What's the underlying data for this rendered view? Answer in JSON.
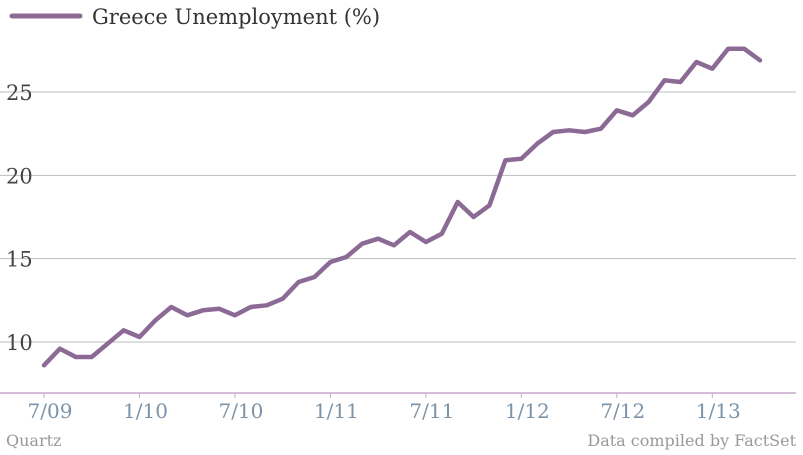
{
  "chart_data": {
    "type": "line",
    "series": [
      {
        "name": "Greece Unemployment (%)",
        "color": "#8c6a96",
        "values": [
          8.6,
          9.6,
          9.1,
          9.1,
          9.9,
          10.7,
          10.3,
          11.3,
          12.1,
          11.6,
          11.9,
          12.0,
          11.6,
          12.1,
          12.2,
          12.6,
          13.6,
          13.9,
          14.8,
          15.1,
          15.9,
          16.2,
          15.8,
          16.6,
          16.0,
          16.5,
          18.4,
          17.5,
          18.2,
          20.9,
          21.0,
          21.9,
          22.6,
          22.7,
          22.6,
          22.8,
          23.9,
          23.6,
          24.4,
          25.7,
          25.6,
          26.8,
          26.4,
          27.6,
          27.6,
          26.9
        ]
      }
    ],
    "x_start_index": 0,
    "x_tick_labels": [
      "7/09",
      "1/10",
      "7/10",
      "1/11",
      "7/11",
      "1/12",
      "7/12",
      "1/13"
    ],
    "x_tick_indices": [
      0,
      6,
      12,
      18,
      24,
      30,
      36,
      42
    ],
    "y_ticks": [
      10,
      15,
      20,
      25
    ],
    "ylim": [
      7.5,
      28.5
    ],
    "grid": true,
    "legend_position": "top-left"
  },
  "footer": {
    "source_left": "Quartz",
    "source_right": "Data compiled by FactSet"
  }
}
